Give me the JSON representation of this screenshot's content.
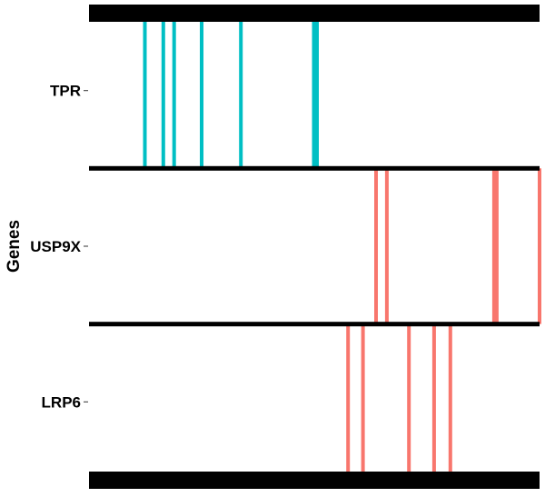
{
  "chart_data": {
    "type": "barcode",
    "ylabel": "Genes",
    "xlabel": "",
    "x_range": [
      0,
      100
    ],
    "categories": [
      "TPR",
      "USP9X",
      "LRP6"
    ],
    "series": [
      {
        "gene": "TPR",
        "color": "#00BFC4",
        "positions": [
          12.4,
          16.5,
          18.9,
          25.0,
          33.7,
          49.9,
          50.6
        ]
      },
      {
        "gene": "USP9X",
        "color": "#F8766D",
        "positions": [
          63.7,
          66.1,
          89.9,
          90.5,
          100.0
        ]
      },
      {
        "gene": "LRP6",
        "color": "#F8766D",
        "positions": [
          57.5,
          60.8,
          71.0,
          76.6,
          80.2
        ]
      }
    ]
  }
}
